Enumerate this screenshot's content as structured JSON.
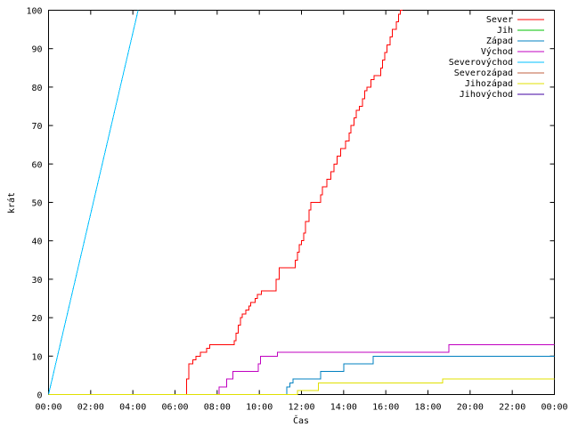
{
  "chart_data": {
    "type": "line",
    "xlabel": "Čas",
    "ylabel": "krát",
    "xlim": [
      0,
      24
    ],
    "ylim": [
      0,
      100
    ],
    "grid": false,
    "legend_position": "top-right",
    "x_ticks": [
      {
        "value": 0,
        "label": "00:00"
      },
      {
        "value": 2,
        "label": "02:00"
      },
      {
        "value": 4,
        "label": "04:00"
      },
      {
        "value": 6,
        "label": "06:00"
      },
      {
        "value": 8,
        "label": "08:00"
      },
      {
        "value": 10,
        "label": "10:00"
      },
      {
        "value": 12,
        "label": "12:00"
      },
      {
        "value": 14,
        "label": "14:00"
      },
      {
        "value": 16,
        "label": "16:00"
      },
      {
        "value": 18,
        "label": "18:00"
      },
      {
        "value": 20,
        "label": "20:00"
      },
      {
        "value": 22,
        "label": "22:00"
      },
      {
        "value": 24,
        "label": "00:00"
      }
    ],
    "y_ticks": [
      {
        "value": 0,
        "label": "0"
      },
      {
        "value": 10,
        "label": "10"
      },
      {
        "value": 20,
        "label": "20"
      },
      {
        "value": 30,
        "label": "30"
      },
      {
        "value": 40,
        "label": "40"
      },
      {
        "value": 50,
        "label": "50"
      },
      {
        "value": 60,
        "label": "60"
      },
      {
        "value": 70,
        "label": "70"
      },
      {
        "value": 80,
        "label": "80"
      },
      {
        "value": 90,
        "label": "90"
      },
      {
        "value": 100,
        "label": "100"
      }
    ],
    "series": [
      {
        "name": "Sever",
        "color": "#ff0000",
        "step": true,
        "points": [
          [
            0,
            0
          ],
          [
            6.5,
            0
          ],
          [
            6.55,
            4
          ],
          [
            6.65,
            8
          ],
          [
            6.85,
            9
          ],
          [
            7.0,
            10
          ],
          [
            7.2,
            11
          ],
          [
            7.5,
            12
          ],
          [
            7.65,
            13
          ],
          [
            8.3,
            13
          ],
          [
            8.8,
            14
          ],
          [
            8.9,
            16
          ],
          [
            9.0,
            18
          ],
          [
            9.1,
            20
          ],
          [
            9.2,
            21
          ],
          [
            9.35,
            22
          ],
          [
            9.5,
            23
          ],
          [
            9.6,
            24
          ],
          [
            9.8,
            25
          ],
          [
            9.9,
            26
          ],
          [
            10.1,
            27
          ],
          [
            10.8,
            30
          ],
          [
            10.95,
            33
          ],
          [
            11.6,
            33
          ],
          [
            11.7,
            35
          ],
          [
            11.8,
            37
          ],
          [
            11.9,
            39
          ],
          [
            12.0,
            40
          ],
          [
            12.1,
            42
          ],
          [
            12.2,
            45
          ],
          [
            12.35,
            48
          ],
          [
            12.45,
            50
          ],
          [
            12.9,
            52
          ],
          [
            13.0,
            54
          ],
          [
            13.2,
            56
          ],
          [
            13.4,
            58
          ],
          [
            13.55,
            60
          ],
          [
            13.7,
            62
          ],
          [
            13.85,
            64
          ],
          [
            14.1,
            66
          ],
          [
            14.25,
            68
          ],
          [
            14.35,
            70
          ],
          [
            14.5,
            72
          ],
          [
            14.6,
            74
          ],
          [
            14.75,
            75
          ],
          [
            14.9,
            77
          ],
          [
            15.0,
            79
          ],
          [
            15.1,
            80
          ],
          [
            15.3,
            82
          ],
          [
            15.45,
            83
          ],
          [
            15.75,
            85
          ],
          [
            15.85,
            87
          ],
          [
            15.95,
            89
          ],
          [
            16.05,
            91
          ],
          [
            16.2,
            93
          ],
          [
            16.3,
            95
          ],
          [
            16.5,
            97
          ],
          [
            16.6,
            99
          ],
          [
            16.7,
            100
          ],
          [
            16.8,
            100
          ]
        ]
      },
      {
        "name": "Jih",
        "color": "#00c000",
        "step": true,
        "points": []
      },
      {
        "name": "Západ",
        "color": "#0080c0",
        "step": true,
        "points": [
          [
            0,
            0
          ],
          [
            11.2,
            0
          ],
          [
            11.3,
            2
          ],
          [
            11.45,
            3
          ],
          [
            11.6,
            4
          ],
          [
            12.7,
            4
          ],
          [
            12.9,
            6
          ],
          [
            13.8,
            6
          ],
          [
            14.0,
            8
          ],
          [
            15.2,
            8
          ],
          [
            15.4,
            10
          ],
          [
            24,
            10
          ]
        ]
      },
      {
        "name": "Východ",
        "color": "#c000c0",
        "step": true,
        "points": [
          [
            0,
            0
          ],
          [
            8.0,
            0
          ],
          [
            8.1,
            2
          ],
          [
            8.45,
            4
          ],
          [
            8.75,
            6
          ],
          [
            9.8,
            6
          ],
          [
            9.95,
            8
          ],
          [
            10.05,
            10
          ],
          [
            10.7,
            10
          ],
          [
            10.85,
            11
          ],
          [
            18.9,
            11
          ],
          [
            19.0,
            13
          ],
          [
            24,
            13
          ]
        ]
      },
      {
        "name": "Severovýchod",
        "color": "#00c0ff",
        "step": false,
        "points": [
          [
            0,
            0
          ],
          [
            4.25,
            100
          ]
        ]
      },
      {
        "name": "Severozápad",
        "color": "#c06040",
        "step": true,
        "points": []
      },
      {
        "name": "Jihozápad",
        "color": "#e0e000",
        "step": true,
        "points": [
          [
            0,
            0
          ],
          [
            11.7,
            0
          ],
          [
            11.8,
            1
          ],
          [
            12.6,
            1
          ],
          [
            12.8,
            3
          ],
          [
            18.6,
            3
          ],
          [
            18.7,
            4
          ],
          [
            24,
            4
          ]
        ]
      },
      {
        "name": "Jihovýchod",
        "color": "#4000a0",
        "step": true,
        "points": []
      }
    ]
  }
}
